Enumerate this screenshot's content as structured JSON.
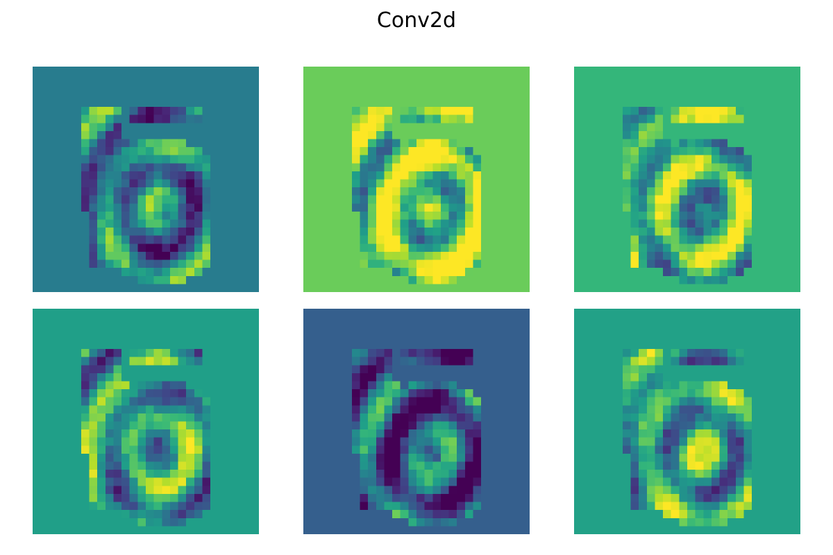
{
  "title": "Conv2d",
  "colormap": {
    "name": "viridis",
    "stops": [
      "#440154",
      "#482878",
      "#3e4989",
      "#31688e",
      "#26828e",
      "#1f9e89",
      "#35b779",
      "#6ece58",
      "#b5de2b",
      "#fde725"
    ]
  },
  "chart_data": {
    "type": "heatmap",
    "title": "Conv2d",
    "grid_size": [
      28,
      28
    ],
    "value_range": [
      0,
      1
    ],
    "panels": [
      {
        "background": 0.42,
        "values": []
      },
      {
        "background": 0.77,
        "values": []
      },
      {
        "background": 0.66,
        "values": []
      },
      {
        "background": 0.56,
        "values": []
      },
      {
        "background": 0.3,
        "values": []
      },
      {
        "background": 0.57,
        "values": []
      }
    ],
    "axes": "off"
  }
}
